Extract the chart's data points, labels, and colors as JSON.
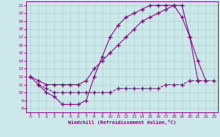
{
  "xlabel": "Windchill (Refroidissement éolien,°C)",
  "bg_color": "#cce8ea",
  "line_color": "#800080",
  "grid_color": "#aacccc",
  "xlim": [
    -0.5,
    23.5
  ],
  "ylim": [
    7.5,
    21.5
  ],
  "xticks": [
    0,
    1,
    2,
    3,
    4,
    5,
    6,
    7,
    8,
    9,
    10,
    11,
    12,
    13,
    14,
    15,
    16,
    17,
    18,
    19,
    20,
    21,
    22,
    23
  ],
  "yticks": [
    8,
    9,
    10,
    11,
    12,
    13,
    14,
    15,
    16,
    17,
    18,
    19,
    20,
    21
  ],
  "line1_x": [
    0,
    1,
    2,
    3,
    4,
    5,
    6,
    7,
    8,
    9,
    10,
    11,
    12,
    13,
    14,
    15,
    16,
    17,
    18,
    19,
    20,
    21,
    22,
    23
  ],
  "line1_y": [
    12,
    11,
    10,
    9.5,
    8.5,
    8.5,
    8.5,
    9,
    12,
    14.5,
    17,
    18.5,
    19.5,
    20,
    20.5,
    21,
    21,
    21,
    21,
    21,
    17,
    14,
    11.5,
    null
  ],
  "line2_x": [
    0,
    1,
    2,
    3,
    4,
    5,
    6,
    7,
    8,
    9,
    10,
    11,
    12,
    13,
    14,
    15,
    16,
    17,
    18,
    19,
    20,
    21
  ],
  "line2_y": [
    12,
    11.5,
    11,
    11,
    11,
    11,
    11,
    11.5,
    13,
    14,
    15,
    16,
    17,
    18,
    19,
    19.5,
    20,
    20.5,
    21,
    19.5,
    17,
    11.5
  ],
  "line3_x": [
    1,
    2,
    3,
    4,
    5,
    6,
    7,
    8,
    9,
    10,
    11,
    12,
    13,
    14,
    15,
    16,
    17,
    18,
    19,
    20,
    21,
    22,
    23
  ],
  "line3_y": [
    11,
    10.5,
    10,
    10,
    10,
    10,
    10,
    10,
    10,
    10,
    10.5,
    10.5,
    10.5,
    10.5,
    10.5,
    10.5,
    11,
    11,
    11,
    11.5,
    11.5,
    11.5,
    11.5
  ]
}
